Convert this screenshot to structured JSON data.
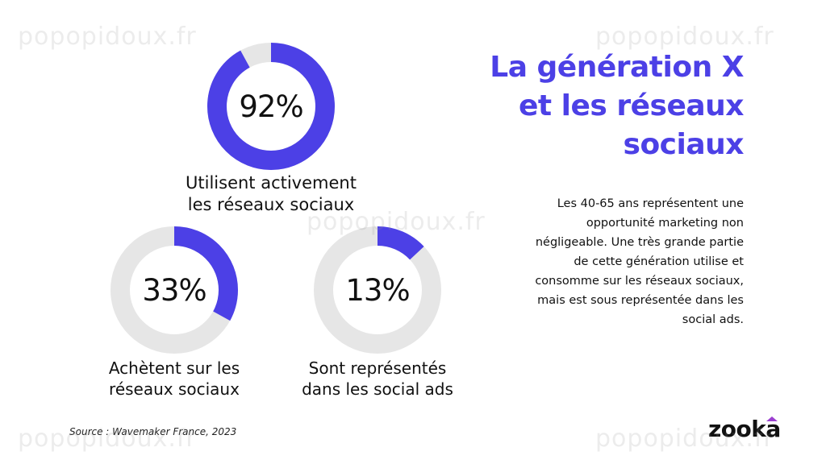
{
  "colors": {
    "accent": "#4c40e6",
    "track": "#e6e6e6",
    "text": "#111111",
    "logo_accent": "#9b3fd0"
  },
  "chart_data": {
    "type": "pie",
    "subtype": "donut",
    "items": [
      {
        "value": 92,
        "label": "92%",
        "caption_lines": [
          "Utilisent activement",
          "les réseaux sociaux"
        ]
      },
      {
        "value": 33,
        "label": "33%",
        "caption_lines": [
          "Achètent sur les",
          "réseaux sociaux"
        ]
      },
      {
        "value": 13,
        "label": "13%",
        "caption_lines": [
          "Sont représentés",
          "dans les social ads"
        ]
      }
    ]
  },
  "title_lines": [
    "La génération X",
    "et les réseaux",
    "sociaux"
  ],
  "description_lines": [
    "Les 40-65 ans représentent une",
    "opportunité marketing non",
    "négligeable. Une très grande partie",
    "de cette génération utilise et",
    "consomme sur les réseaux sociaux,",
    "mais est sous représentée dans les",
    "social ads."
  ],
  "source": "Source : Wavemaker France, 2023",
  "logo": "zooka",
  "watermark": "popopidoux.fr"
}
